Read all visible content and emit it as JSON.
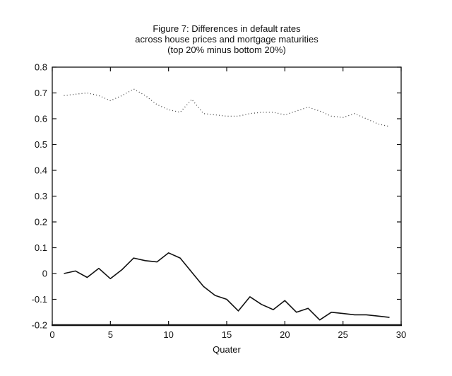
{
  "figure": {
    "title_line1": "Figure 7: Differences in default rates",
    "title_line2": "across house prices and mortgage maturities",
    "title_line3": "(top 20% minus bottom 20%)"
  },
  "chart_data": {
    "type": "line",
    "title": "Figure 7: Differences in default rates\nacross house prices and mortgage maturities\n(top 20% minus bottom 20%)",
    "xlabel": "Quater",
    "ylabel": "",
    "xlim": [
      0,
      30
    ],
    "ylim": [
      -0.2,
      0.8
    ],
    "xticks": [
      0,
      5,
      10,
      15,
      20,
      25,
      30
    ],
    "yticks": [
      -0.2,
      -0.1,
      0,
      0.1,
      0.2,
      0.3,
      0.4,
      0.5,
      0.6,
      0.7,
      0.8
    ],
    "grid": false,
    "legend": "none",
    "box": true,
    "axis_color": "#111111",
    "x": [
      1,
      2,
      3,
      4,
      5,
      6,
      7,
      8,
      9,
      10,
      11,
      12,
      13,
      14,
      15,
      16,
      17,
      18,
      19,
      20,
      21,
      22,
      23,
      24,
      25,
      26,
      27,
      28,
      29
    ],
    "series": [
      {
        "name": "dotted",
        "style": "dotted",
        "color": "#3f3f3f",
        "values": [
          0.69,
          0.695,
          0.7,
          0.69,
          0.67,
          0.69,
          0.715,
          0.69,
          0.655,
          0.635,
          0.625,
          0.675,
          0.62,
          0.615,
          0.61,
          0.61,
          0.62,
          0.625,
          0.625,
          0.615,
          0.63,
          0.645,
          0.63,
          0.61,
          0.605,
          0.62,
          0.6,
          0.58,
          0.57
        ]
      },
      {
        "name": "solid",
        "style": "solid",
        "color": "#101010",
        "values": [
          0.0,
          0.01,
          -0.015,
          0.02,
          -0.02,
          0.015,
          0.06,
          0.05,
          0.045,
          0.08,
          0.06,
          0.005,
          -0.05,
          -0.085,
          -0.1,
          -0.145,
          -0.09,
          -0.12,
          -0.14,
          -0.105,
          -0.15,
          -0.135,
          -0.18,
          -0.15,
          -0.155,
          -0.16,
          -0.16,
          -0.165,
          -0.17
        ]
      }
    ]
  }
}
